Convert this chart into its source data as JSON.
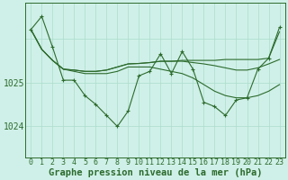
{
  "background_color": "#cff0e8",
  "plot_bg_color": "#cff0e8",
  "grid_color": "#aaddcc",
  "line_color": "#2d6b2d",
  "xlabel": "Graphe pression niveau de la mer (hPa)",
  "xlabel_fontsize": 7.5,
  "tick_fontsize": 6,
  "ytick_fontsize": 7,
  "ylim": [
    1023.3,
    1026.8
  ],
  "xlim": [
    -0.5,
    23.5
  ],
  "yticks": [
    1024,
    1025
  ],
  "xticks": [
    0,
    1,
    2,
    3,
    4,
    5,
    6,
    7,
    8,
    9,
    10,
    11,
    12,
    13,
    14,
    15,
    16,
    17,
    18,
    19,
    20,
    21,
    22,
    23
  ],
  "series_main": [
    1026.2,
    1026.5,
    1025.8,
    1025.05,
    1025.05,
    1024.7,
    1024.5,
    1024.25,
    1024.0,
    1024.35,
    1025.15,
    1025.25,
    1025.65,
    1025.2,
    1025.7,
    1025.3,
    1024.55,
    1024.45,
    1024.25,
    1024.6,
    1024.65,
    1025.3,
    1025.55,
    1026.25
  ],
  "series_smooth1": [
    1026.2,
    1025.75,
    1025.5,
    1025.3,
    1025.25,
    1025.2,
    1025.2,
    1025.2,
    1025.25,
    1025.35,
    1025.35,
    1025.35,
    1025.3,
    1025.25,
    1025.2,
    1025.1,
    1024.95,
    1024.8,
    1024.7,
    1024.65,
    1024.65,
    1024.7,
    1024.8,
    1024.95
  ],
  "series_smooth2": [
    1026.2,
    1025.75,
    1025.5,
    1025.3,
    1025.28,
    1025.25,
    1025.25,
    1025.28,
    1025.35,
    1025.42,
    1025.43,
    1025.45,
    1025.48,
    1025.48,
    1025.48,
    1025.45,
    1025.42,
    1025.38,
    1025.33,
    1025.28,
    1025.28,
    1025.33,
    1025.42,
    1025.52
  ],
  "series_smooth3": [
    1026.2,
    1025.75,
    1025.5,
    1025.3,
    1025.28,
    1025.25,
    1025.25,
    1025.28,
    1025.35,
    1025.42,
    1025.43,
    1025.45,
    1025.48,
    1025.48,
    1025.5,
    1025.5,
    1025.5,
    1025.5,
    1025.52,
    1025.52,
    1025.52,
    1025.52,
    1025.55,
    1026.15
  ]
}
